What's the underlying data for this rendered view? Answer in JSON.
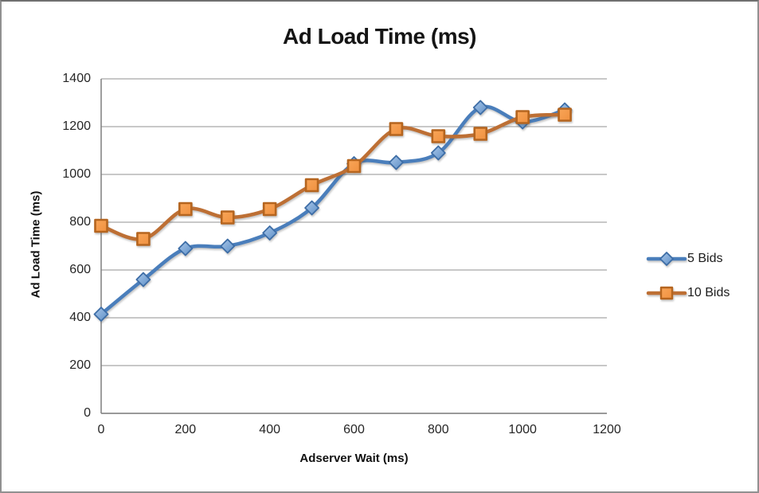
{
  "window": {
    "background": "#ffffff",
    "frame_border_color": "#8f8f8f"
  },
  "chart_data": {
    "type": "line",
    "title": "Ad Load Time (ms)",
    "xlabel": "Adserver Wait (ms)",
    "ylabel": "Ad Load Time (ms)",
    "x": [
      0,
      100,
      200,
      300,
      400,
      500,
      600,
      700,
      800,
      900,
      1000,
      1100
    ],
    "series": [
      {
        "name": "5 Bids",
        "marker": "diamond",
        "line_color": "#4a7ebb",
        "marker_fill_light": "#a9c7ea",
        "marker_fill_dark": "#5e8fc6",
        "marker_stroke": "#3d6da6",
        "values": [
          415,
          560,
          690,
          700,
          755,
          860,
          1045,
          1050,
          1090,
          1280,
          1220,
          1270
        ]
      },
      {
        "name": "10 Bids",
        "marker": "square",
        "line_color": "#bd6f34",
        "marker_fill_light": "#f8a558",
        "marker_fill_dark": "#f09140",
        "marker_stroke": "#b5651f",
        "values": [
          785,
          730,
          855,
          820,
          855,
          955,
          1035,
          1190,
          1160,
          1170,
          1240,
          1250
        ]
      }
    ],
    "xlim": [
      0,
      1200
    ],
    "ylim": [
      0,
      1400
    ],
    "x_ticks": [
      0,
      200,
      400,
      600,
      800,
      1000,
      1200
    ],
    "y_ticks": [
      0,
      200,
      400,
      600,
      800,
      1000,
      1200,
      1400
    ],
    "grid": true,
    "smooth": true,
    "legend_position": "right",
    "gridline_color": "#a8a8a8",
    "axis_color": "#7f7f7f",
    "tick_label_color": "#262626"
  }
}
